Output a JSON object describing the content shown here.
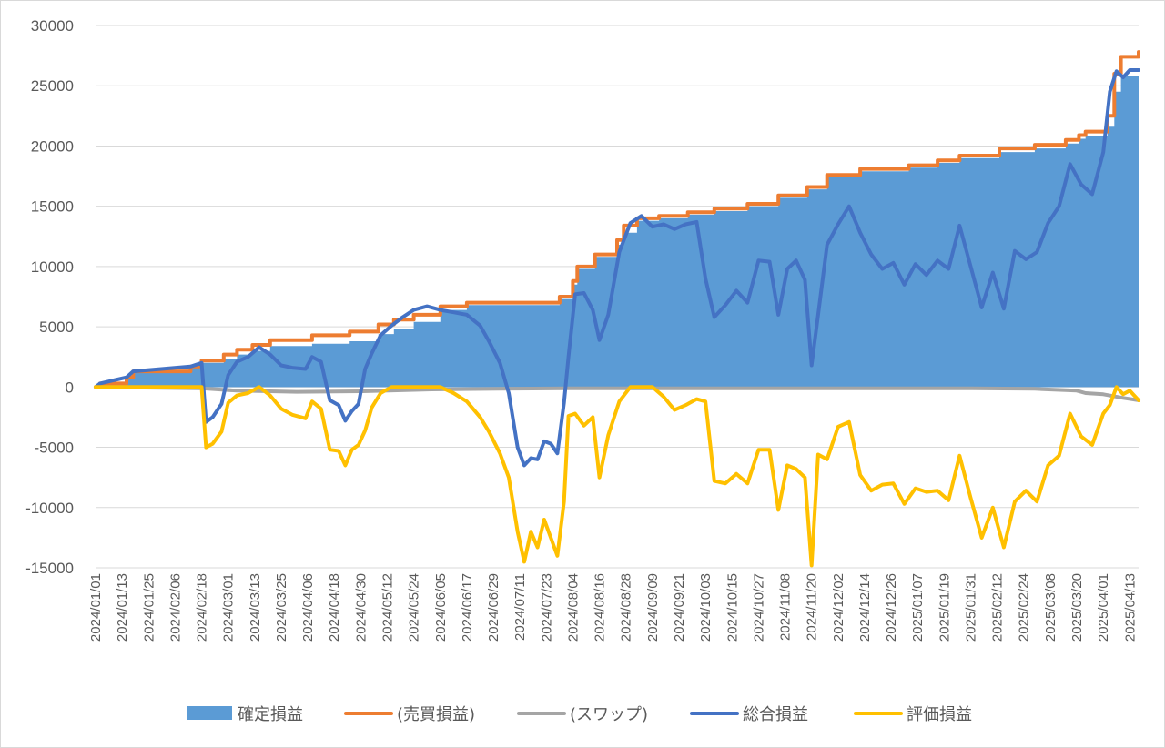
{
  "chart_data": {
    "type": "area",
    "title": "",
    "xlabel": "",
    "ylabel": "",
    "ylim": [
      -15000,
      30000
    ],
    "yticks": [
      30000,
      25000,
      20000,
      15000,
      10000,
      5000,
      0,
      -5000,
      -10000,
      -15000
    ],
    "ytick_labels": [
      "30000",
      "25000",
      "20000",
      "15000",
      "10000",
      "5000",
      "0",
      "-5000",
      "-10000",
      "-15000"
    ],
    "x_range": [
      "2024/01/01",
      "2025/04/17"
    ],
    "xtick_labels": [
      "2024/01/01",
      "2024/01/13",
      "2024/01/25",
      "2024/02/06",
      "2024/02/18",
      "2024/03/01",
      "2024/03/13",
      "2024/03/25",
      "2024/04/06",
      "2024/04/18",
      "2024/04/30",
      "2024/05/12",
      "2024/05/24",
      "2024/06/05",
      "2024/06/17",
      "2024/06/29",
      "2024/07/11",
      "2024/07/23",
      "2024/08/04",
      "2024/08/16",
      "2024/08/28",
      "2024/09/09",
      "2024/09/21",
      "2024/10/03",
      "2024/10/15",
      "2024/10/27",
      "2024/11/08",
      "2024/11/20",
      "2024/12/02",
      "2024/12/14",
      "2024/12/26",
      "2025/01/07",
      "2025/01/19",
      "2025/01/31",
      "2025/02/12",
      "2025/02/24",
      "2025/03/08",
      "2025/03/20",
      "2025/04/01",
      "2025/04/13"
    ],
    "legend_position": "bottom",
    "grid": true,
    "series": [
      {
        "name": "確定損益",
        "type": "area",
        "color": "#5b9bd5",
        "x": [
          "2024/01/01",
          "2024/01/03",
          "2024/01/15",
          "2024/01/18",
          "2024/02/13",
          "2024/02/18",
          "2024/02/28",
          "2024/03/05",
          "2024/03/12",
          "2024/03/20",
          "2024/04/08",
          "2024/04/25",
          "2024/05/08",
          "2024/05/15",
          "2024/05/24",
          "2024/06/05",
          "2024/06/17",
          "2024/07/25",
          "2024/07/29",
          "2024/08/04",
          "2024/08/06",
          "2024/08/14",
          "2024/08/24",
          "2024/08/27",
          "2024/09/02",
          "2024/09/12",
          "2024/09/25",
          "2024/10/07",
          "2024/10/22",
          "2024/11/05",
          "2024/11/18",
          "2024/11/27",
          "2024/12/12",
          "2025/01/03",
          "2025/01/16",
          "2025/01/26",
          "2025/02/13",
          "2025/03/01",
          "2025/03/15",
          "2025/03/21",
          "2025/03/24",
          "2025/04/03",
          "2025/04/06",
          "2025/04/09",
          "2025/04/17"
        ],
        "values": [
          0,
          300,
          800,
          1300,
          1700,
          2000,
          2300,
          2700,
          3000,
          3400,
          3600,
          3800,
          4400,
          4800,
          5400,
          6400,
          6800,
          6800,
          7300,
          8500,
          9800,
          10800,
          11800,
          12800,
          13800,
          14000,
          14300,
          14600,
          15000,
          15700,
          16400,
          17400,
          17900,
          18200,
          18600,
          19000,
          19500,
          19800,
          20200,
          20600,
          20800,
          21600,
          24500,
          25800,
          26300
        ]
      },
      {
        "name": "(売買損益)",
        "type": "line",
        "color": "#ed7d31",
        "x": [
          "2024/01/01",
          "2024/01/03",
          "2024/01/15",
          "2024/01/18",
          "2024/02/13",
          "2024/02/18",
          "2024/02/28",
          "2024/03/05",
          "2024/03/12",
          "2024/03/20",
          "2024/04/08",
          "2024/04/25",
          "2024/05/08",
          "2024/05/15",
          "2024/05/24",
          "2024/06/05",
          "2024/06/17",
          "2024/07/25",
          "2024/07/29",
          "2024/08/04",
          "2024/08/06",
          "2024/08/14",
          "2024/08/24",
          "2024/08/27",
          "2024/09/02",
          "2024/09/12",
          "2024/09/25",
          "2024/10/07",
          "2024/10/22",
          "2024/11/05",
          "2024/11/18",
          "2024/11/27",
          "2024/12/12",
          "2025/01/03",
          "2025/01/16",
          "2025/01/26",
          "2025/02/13",
          "2025/03/01",
          "2025/03/15",
          "2025/03/21",
          "2025/03/24",
          "2025/04/03",
          "2025/04/06",
          "2025/04/09",
          "2025/04/17"
        ],
        "values": [
          0,
          300,
          800,
          1300,
          1700,
          2200,
          2700,
          3100,
          3500,
          3900,
          4300,
          4600,
          5200,
          5600,
          6000,
          6700,
          7000,
          7000,
          7500,
          8800,
          10000,
          11000,
          12200,
          13400,
          14000,
          14200,
          14500,
          14800,
          15200,
          15900,
          16600,
          17600,
          18100,
          18400,
          18800,
          19200,
          19800,
          20100,
          20500,
          20900,
          21200,
          22500,
          26000,
          27400,
          27800
        ]
      },
      {
        "name": "(スワップ)",
        "type": "line",
        "color": "#a5a5a5",
        "x": [
          "2024/01/01",
          "2024/02/18",
          "2024/03/05",
          "2024/04/01",
          "2024/05/01",
          "2024/06/01",
          "2024/07/01",
          "2024/08/01",
          "2024/09/01",
          "2024/10/01",
          "2024/11/01",
          "2024/12/01",
          "2025/01/01",
          "2025/02/01",
          "2025/03/01",
          "2025/03/20",
          "2025/03/24",
          "2025/04/01",
          "2025/04/10",
          "2025/04/17"
        ],
        "values": [
          0,
          -100,
          -300,
          -400,
          -350,
          -200,
          -150,
          -100,
          -100,
          -100,
          -100,
          -100,
          -100,
          -100,
          -150,
          -300,
          -500,
          -600,
          -900,
          -1100
        ]
      },
      {
        "name": "総合損益",
        "type": "line",
        "color": "#4472c4",
        "x": [
          "2024/01/01",
          "2024/01/03",
          "2024/01/15",
          "2024/01/18",
          "2024/02/13",
          "2024/02/18",
          "2024/02/20",
          "2024/02/23",
          "2024/02/27",
          "2024/03/01",
          "2024/03/05",
          "2024/03/10",
          "2024/03/15",
          "2024/03/20",
          "2024/03/25",
          "2024/03/30",
          "2024/04/05",
          "2024/04/08",
          "2024/04/12",
          "2024/04/16",
          "2024/04/20",
          "2024/04/23",
          "2024/04/26",
          "2024/04/29",
          "2024/05/02",
          "2024/05/05",
          "2024/05/09",
          "2024/05/14",
          "2024/05/19",
          "2024/05/24",
          "2024/05/30",
          "2024/06/05",
          "2024/06/11",
          "2024/06/17",
          "2024/06/23",
          "2024/06/27",
          "2024/07/02",
          "2024/07/06",
          "2024/07/10",
          "2024/07/13",
          "2024/07/16",
          "2024/07/19",
          "2024/07/22",
          "2024/07/25",
          "2024/07/28",
          "2024/07/31",
          "2024/08/02",
          "2024/08/05",
          "2024/08/09",
          "2024/08/13",
          "2024/08/16",
          "2024/08/20",
          "2024/08/25",
          "2024/08/30",
          "2024/09/04",
          "2024/09/09",
          "2024/09/14",
          "2024/09/19",
          "2024/09/24",
          "2024/09/29",
          "2024/10/03",
          "2024/10/07",
          "2024/10/12",
          "2024/10/17",
          "2024/10/22",
          "2024/10/27",
          "2024/11/01",
          "2024/11/05",
          "2024/11/09",
          "2024/11/13",
          "2024/11/17",
          "2024/11/20",
          "2024/11/23",
          "2024/11/27",
          "2024/12/02",
          "2024/12/07",
          "2024/12/12",
          "2024/12/17",
          "2024/12/22",
          "2024/12/27",
          "2025/01/01",
          "2025/01/06",
          "2025/01/11",
          "2025/01/16",
          "2025/01/21",
          "2025/01/26",
          "2025/01/31",
          "2025/02/05",
          "2025/02/10",
          "2025/02/15",
          "2025/02/20",
          "2025/02/25",
          "2025/03/02",
          "2025/03/07",
          "2025/03/12",
          "2025/03/17",
          "2025/03/22",
          "2025/03/27",
          "2025/04/01",
          "2025/04/04",
          "2025/04/07",
          "2025/04/10",
          "2025/04/13",
          "2025/04/17"
        ],
        "values": [
          0,
          300,
          800,
          1300,
          1700,
          2000,
          -2900,
          -2500,
          -1400,
          1000,
          2100,
          2500,
          3300,
          2700,
          1800,
          1600,
          1500,
          2500,
          2100,
          -1100,
          -1500,
          -2800,
          -2000,
          -1400,
          1500,
          2800,
          4300,
          5100,
          5800,
          6400,
          6700,
          6400,
          6200,
          6000,
          5100,
          3800,
          2000,
          -500,
          -5000,
          -6500,
          -5900,
          -6000,
          -4500,
          -4700,
          -5500,
          -1300,
          2500,
          7700,
          7800,
          6400,
          3900,
          6000,
          11200,
          13600,
          14200,
          13300,
          13500,
          13100,
          13500,
          13700,
          9000,
          5800,
          6800,
          8000,
          7000,
          10500,
          10400,
          6000,
          9800,
          10500,
          8900,
          1800,
          6000,
          11800,
          13500,
          15000,
          12800,
          11000,
          9800,
          10300,
          8500,
          10200,
          9300,
          10500,
          9800,
          13400,
          10000,
          6600,
          9500,
          6500,
          11300,
          10600,
          11200,
          13600,
          15000,
          18500,
          16800,
          16000,
          19500,
          24500,
          26200,
          25700,
          26300,
          26300
        ]
      },
      {
        "name": "評価損益",
        "type": "line",
        "color": "#ffc000",
        "x": [
          "2024/01/01",
          "2024/01/03",
          "2024/01/15",
          "2024/01/18",
          "2024/02/13",
          "2024/02/18",
          "2024/02/20",
          "2024/02/23",
          "2024/02/27",
          "2024/03/01",
          "2024/03/05",
          "2024/03/10",
          "2024/03/15",
          "2024/03/20",
          "2024/03/25",
          "2024/03/30",
          "2024/04/05",
          "2024/04/08",
          "2024/04/12",
          "2024/04/16",
          "2024/04/20",
          "2024/04/23",
          "2024/04/26",
          "2024/04/29",
          "2024/05/02",
          "2024/05/05",
          "2024/05/09",
          "2024/05/14",
          "2024/05/19",
          "2024/05/24",
          "2024/05/30",
          "2024/06/05",
          "2024/06/11",
          "2024/06/17",
          "2024/06/23",
          "2024/06/27",
          "2024/07/02",
          "2024/07/06",
          "2024/07/10",
          "2024/07/13",
          "2024/07/16",
          "2024/07/19",
          "2024/07/22",
          "2024/07/25",
          "2024/07/28",
          "2024/07/31",
          "2024/08/02",
          "2024/08/05",
          "2024/08/09",
          "2024/08/13",
          "2024/08/16",
          "2024/08/20",
          "2024/08/25",
          "2024/08/30",
          "2024/09/04",
          "2024/09/09",
          "2024/09/14",
          "2024/09/19",
          "2024/09/24",
          "2024/09/29",
          "2024/10/03",
          "2024/10/07",
          "2024/10/12",
          "2024/10/17",
          "2024/10/22",
          "2024/10/27",
          "2024/11/01",
          "2024/11/05",
          "2024/11/09",
          "2024/11/13",
          "2024/11/17",
          "2024/11/20",
          "2024/11/23",
          "2024/11/27",
          "2024/12/02",
          "2024/12/07",
          "2024/12/12",
          "2024/12/17",
          "2024/12/22",
          "2024/12/27",
          "2025/01/01",
          "2025/01/06",
          "2025/01/11",
          "2025/01/16",
          "2025/01/21",
          "2025/01/26",
          "2025/01/31",
          "2025/02/05",
          "2025/02/10",
          "2025/02/15",
          "2025/02/20",
          "2025/02/25",
          "2025/03/02",
          "2025/03/07",
          "2025/03/12",
          "2025/03/17",
          "2025/03/22",
          "2025/03/27",
          "2025/04/01",
          "2025/04/04",
          "2025/04/07",
          "2025/04/10",
          "2025/04/13",
          "2025/04/17"
        ],
        "values": [
          0,
          0,
          0,
          0,
          0,
          0,
          -5000,
          -4700,
          -3700,
          -1300,
          -700,
          -500,
          0,
          -700,
          -1800,
          -2300,
          -2600,
          -1200,
          -1800,
          -5200,
          -5300,
          -6500,
          -5200,
          -4800,
          -3600,
          -1700,
          -500,
          0,
          0,
          0,
          0,
          0,
          -500,
          -1200,
          -2500,
          -3700,
          -5500,
          -7500,
          -12000,
          -14500,
          -12000,
          -13300,
          -11000,
          -12500,
          -14000,
          -9500,
          -2400,
          -2200,
          -3200,
          -2500,
          -7500,
          -4000,
          -1200,
          0,
          0,
          0,
          -800,
          -1900,
          -1500,
          -1000,
          -1200,
          -7800,
          -8000,
          -7200,
          -8000,
          -5200,
          -5200,
          -10200,
          -6500,
          -6800,
          -7500,
          -14800,
          -5600,
          -6000,
          -3300,
          -2900,
          -7300,
          -8600,
          -8100,
          -8000,
          -9700,
          -8400,
          -8700,
          -8600,
          -9400,
          -5700,
          -9200,
          -12500,
          -10000,
          -13300,
          -9500,
          -8600,
          -9500,
          -6500,
          -5700,
          -2200,
          -4100,
          -4800,
          -2200,
          -1500,
          0,
          -600,
          -300,
          -1100
        ]
      }
    ]
  }
}
